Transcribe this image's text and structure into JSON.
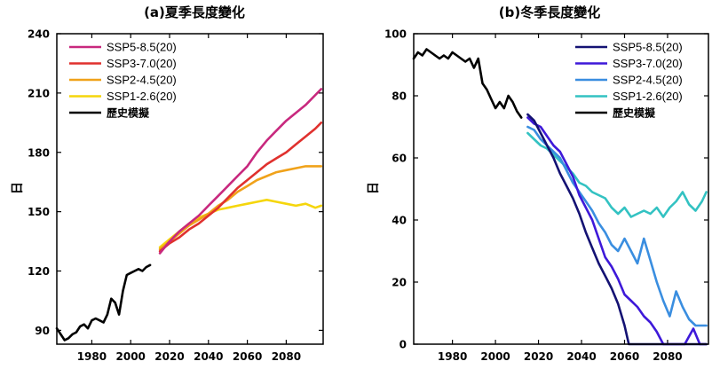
{
  "chart_data": [
    {
      "type": "line",
      "title": "(a)夏季長度變化",
      "ylabel": "日",
      "xlim": [
        1962,
        2099
      ],
      "ylim": [
        83,
        240
      ],
      "xticks": [
        "1980",
        "2000",
        "2020",
        "2040",
        "2060",
        "2080"
      ],
      "yticks": [
        "90",
        "120",
        "150",
        "180",
        "210",
        "240"
      ],
      "legend_position": "top-left",
      "series": [
        {
          "name": "SSP5-8.5(20)",
          "color": "#c8287e",
          "x": [
            2015,
            2020,
            2025,
            2030,
            2035,
            2040,
            2045,
            2050,
            2055,
            2060,
            2065,
            2070,
            2075,
            2080,
            2085,
            2090,
            2095,
            2098
          ],
          "y": [
            129,
            135,
            140,
            144,
            148,
            153,
            158,
            163,
            168,
            173,
            180,
            186,
            191,
            196,
            200,
            204,
            209,
            212
          ]
        },
        {
          "name": "SSP3-7.0(20)",
          "color": "#e0312e",
          "x": [
            2015,
            2020,
            2025,
            2030,
            2035,
            2040,
            2045,
            2050,
            2055,
            2060,
            2065,
            2070,
            2075,
            2080,
            2085,
            2090,
            2095,
            2098
          ],
          "y": [
            130,
            134,
            137,
            141,
            144,
            148,
            152,
            157,
            162,
            166,
            170,
            174,
            177,
            180,
            184,
            188,
            192,
            195
          ]
        },
        {
          "name": "SSP2-4.5(20)",
          "color": "#f0a21a",
          "x": [
            2015,
            2020,
            2025,
            2030,
            2035,
            2040,
            2045,
            2050,
            2055,
            2060,
            2065,
            2070,
            2075,
            2080,
            2085,
            2090,
            2095,
            2098
          ],
          "y": [
            131,
            135,
            139,
            143,
            146,
            149,
            153,
            156,
            160,
            163,
            166,
            168,
            170,
            171,
            172,
            173,
            173,
            173
          ]
        },
        {
          "name": "SSP1-2.6(20)",
          "color": "#f5d60c",
          "x": [
            2015,
            2020,
            2025,
            2030,
            2035,
            2040,
            2045,
            2050,
            2055,
            2060,
            2065,
            2070,
            2075,
            2080,
            2085,
            2090,
            2095,
            2098
          ],
          "y": [
            132,
            136,
            140,
            144,
            147,
            149,
            151,
            152,
            153,
            154,
            155,
            156,
            155,
            154,
            153,
            154,
            152,
            153
          ]
        },
        {
          "name": "歷史模擬",
          "color": "#000000",
          "x": [
            1962,
            1964,
            1966,
            1968,
            1970,
            1972,
            1974,
            1976,
            1978,
            1980,
            1982,
            1984,
            1986,
            1988,
            1990,
            1992,
            1994,
            1996,
            1998,
            2000,
            2002,
            2004,
            2006,
            2008,
            2010
          ],
          "y": [
            91,
            88,
            85,
            86,
            88,
            89,
            92,
            93,
            91,
            95,
            96,
            95,
            94,
            98,
            106,
            104,
            98,
            110,
            118,
            119,
            120,
            121,
            120,
            122,
            123
          ]
        }
      ]
    },
    {
      "type": "line",
      "title": "(b)冬季長度變化",
      "ylabel": "日",
      "xlim": [
        1962,
        2099
      ],
      "ylim": [
        0,
        100
      ],
      "xticks": [
        "1980",
        "2000",
        "2020",
        "2040",
        "2060",
        "2080"
      ],
      "yticks": [
        "0",
        "20",
        "40",
        "60",
        "80",
        "100"
      ],
      "legend_position": "top-right",
      "series": [
        {
          "name": "SSP5-8.5(20)",
          "color": "#141273",
          "x": [
            2015,
            2018,
            2021,
            2024,
            2027,
            2030,
            2033,
            2036,
            2039,
            2042,
            2045,
            2048,
            2051,
            2054,
            2057,
            2060,
            2062,
            2065,
            2070,
            2075,
            2080,
            2085,
            2090,
            2095,
            2098
          ],
          "y": [
            74,
            72,
            68,
            64,
            60,
            55,
            51,
            47,
            42,
            36,
            31,
            26,
            22,
            18,
            13,
            6,
            0,
            0,
            0,
            0,
            0,
            0,
            0,
            0,
            0
          ]
        },
        {
          "name": "SSP3-7.0(20)",
          "color": "#3e19d9",
          "x": [
            2015,
            2018,
            2021,
            2024,
            2027,
            2030,
            2033,
            2036,
            2039,
            2042,
            2045,
            2048,
            2051,
            2054,
            2057,
            2060,
            2063,
            2066,
            2069,
            2072,
            2075,
            2078,
            2081,
            2084,
            2088,
            2092,
            2095,
            2098
          ],
          "y": [
            73,
            71,
            70,
            67,
            64,
            62,
            58,
            54,
            48,
            44,
            40,
            34,
            28,
            25,
            21,
            16,
            14,
            12,
            9,
            7,
            4,
            0,
            0,
            0,
            0,
            5,
            0,
            0
          ]
        },
        {
          "name": "SSP2-4.5(20)",
          "color": "#3a8ee0",
          "x": [
            2015,
            2018,
            2021,
            2024,
            2027,
            2030,
            2033,
            2036,
            2039,
            2042,
            2045,
            2048,
            2051,
            2054,
            2057,
            2060,
            2063,
            2066,
            2069,
            2072,
            2075,
            2078,
            2081,
            2084,
            2087,
            2090,
            2093,
            2096,
            2098
          ],
          "y": [
            70,
            69,
            66,
            64,
            62,
            60,
            56,
            52,
            49,
            46,
            43,
            39,
            36,
            32,
            30,
            34,
            30,
            26,
            34,
            27,
            20,
            14,
            9,
            17,
            12,
            8,
            6,
            6,
            6
          ]
        },
        {
          "name": "SSP1-2.6(20)",
          "color": "#33c2c2",
          "x": [
            2015,
            2018,
            2021,
            2024,
            2027,
            2030,
            2033,
            2036,
            2039,
            2042,
            2045,
            2048,
            2051,
            2054,
            2057,
            2060,
            2063,
            2066,
            2069,
            2072,
            2075,
            2078,
            2081,
            2084,
            2087,
            2090,
            2093,
            2096,
            2098
          ],
          "y": [
            68,
            66,
            64,
            63,
            61,
            59,
            57,
            55,
            52,
            51,
            49,
            48,
            47,
            44,
            42,
            44,
            41,
            42,
            43,
            42,
            44,
            41,
            44,
            46,
            49,
            45,
            43,
            46,
            49
          ]
        },
        {
          "name": "歷史模擬",
          "color": "#000000",
          "x": [
            1962,
            1964,
            1966,
            1968,
            1970,
            1972,
            1974,
            1976,
            1978,
            1980,
            1982,
            1984,
            1986,
            1988,
            1990,
            1992,
            1994,
            1996,
            1998,
            2000,
            2002,
            2004,
            2006,
            2008,
            2010,
            2012
          ],
          "y": [
            92,
            94,
            93,
            95,
            94,
            93,
            92,
            93,
            92,
            94,
            93,
            92,
            91,
            92,
            89,
            92,
            84,
            82,
            79,
            76,
            78,
            76,
            80,
            78,
            75,
            73
          ]
        }
      ]
    }
  ]
}
